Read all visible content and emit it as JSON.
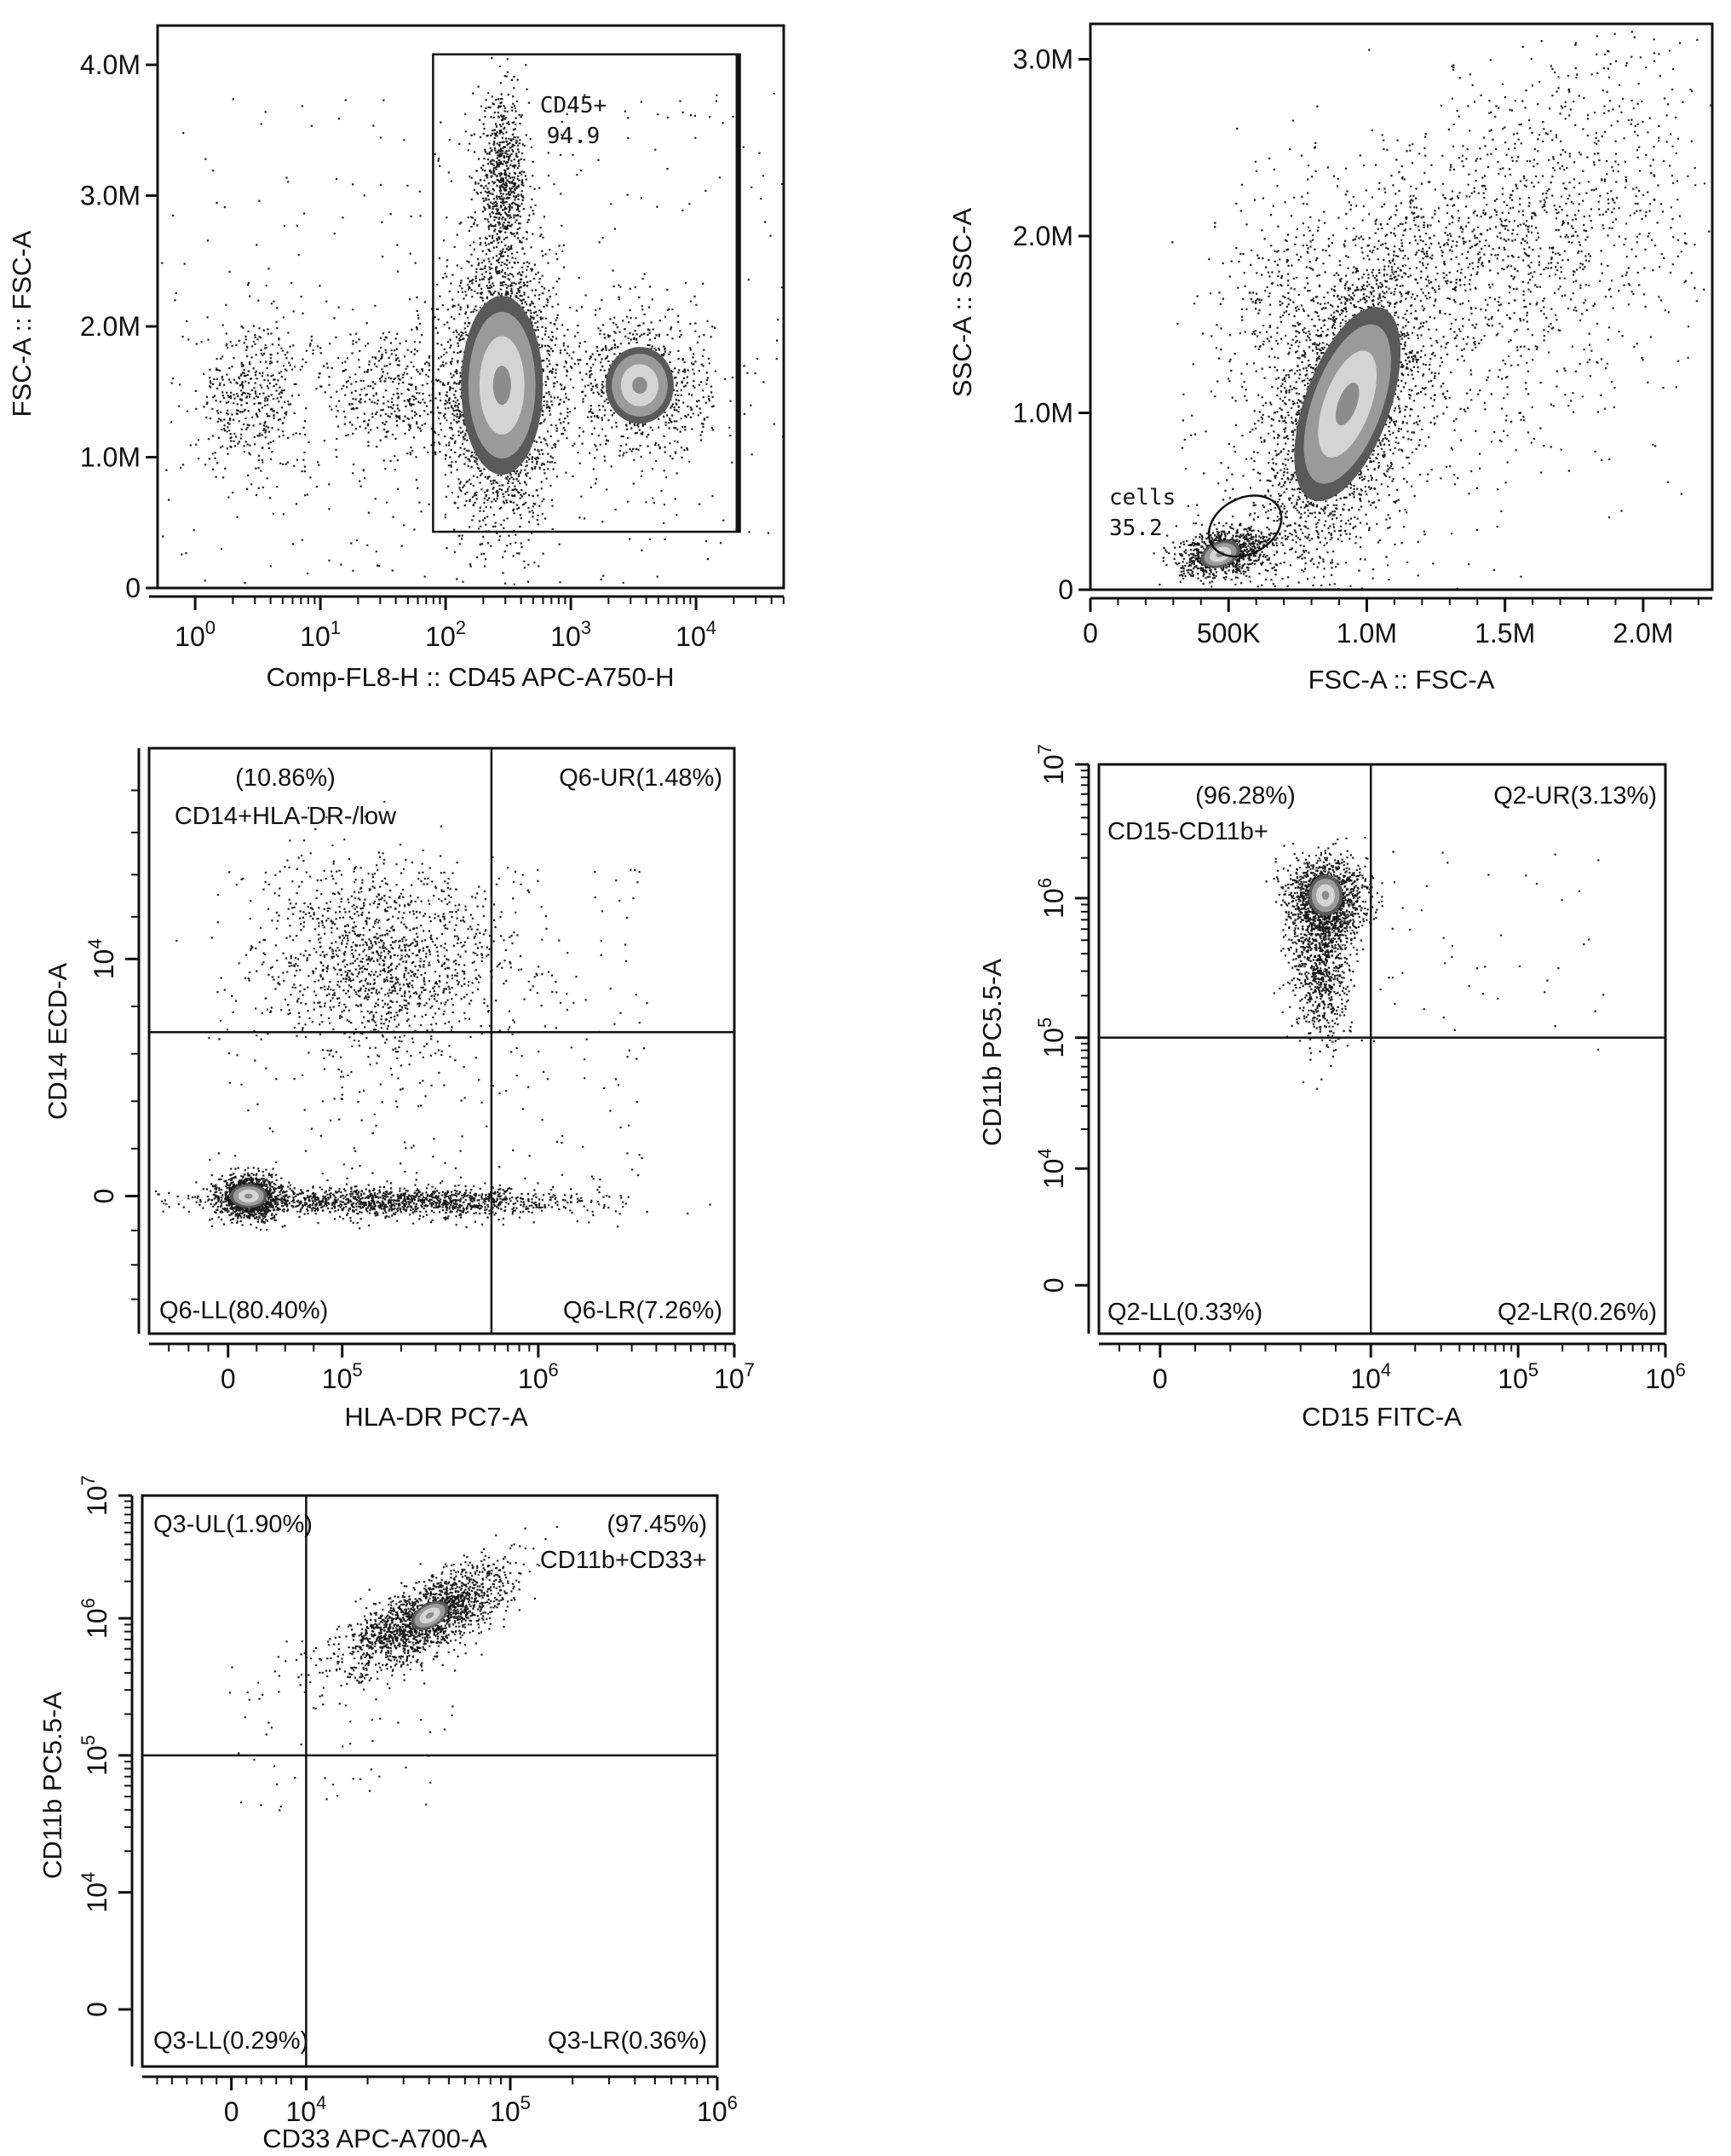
{
  "panels": [
    {
      "id": "p1",
      "type": "scatter",
      "xlabel": "Comp-FL8-H :: CD45 APC-A750-H",
      "ylabel": "FSC-A :: FSC-A",
      "xscale": "log",
      "xlim_log10": [
        -0.3,
        4.7
      ],
      "ylim": [
        0,
        4300000
      ],
      "xticks": [
        {
          "v": 0,
          "base": "10",
          "exp": "0"
        },
        {
          "v": 1,
          "base": "10",
          "exp": "1"
        },
        {
          "v": 2,
          "base": "10",
          "exp": "2"
        },
        {
          "v": 3,
          "base": "10",
          "exp": "3"
        },
        {
          "v": 4,
          "base": "10",
          "exp": "4"
        }
      ],
      "yticks": [
        {
          "v": 0,
          "label": "0"
        },
        {
          "v": 1000000,
          "label": "1.0M"
        },
        {
          "v": 2000000,
          "label": "2.0M"
        },
        {
          "v": 3000000,
          "label": "3.0M"
        },
        {
          "v": 4000000,
          "label": "4.0M"
        }
      ],
      "gate": {
        "type": "rectangle",
        "name": "CD45+",
        "value": "94.9",
        "x_log10": [
          1.9,
          4.35
        ],
        "y": [
          430000,
          4080000
        ]
      },
      "clusters": [
        {
          "cx": 2.45,
          "cy": 1550000,
          "sx": 0.22,
          "sy": 520000,
          "n": 2600
        },
        {
          "cx": 2.45,
          "cy": 3100000,
          "sx": 0.1,
          "sy": 320000,
          "n": 700
        },
        {
          "cx": 3.55,
          "cy": 1550000,
          "sx": 0.28,
          "sy": 280000,
          "n": 800
        },
        {
          "cx": 0.45,
          "cy": 1480000,
          "sx": 0.22,
          "sy": 280000,
          "n": 420
        },
        {
          "cx": 1.55,
          "cy": 1500000,
          "sx": 0.28,
          "sy": 300000,
          "n": 420
        }
      ],
      "background_points": 380
    },
    {
      "id": "p2",
      "type": "scatter",
      "xlabel": "FSC-A :: FSC-A",
      "ylabel": "SSC-A :: SSC-A",
      "xlim": [
        0,
        2250000
      ],
      "ylim": [
        0,
        3200000
      ],
      "xticks": [
        {
          "v": 0,
          "label": "0"
        },
        {
          "v": 500000,
          "label": "500K"
        },
        {
          "v": 1000000,
          "label": "1.0M"
        },
        {
          "v": 1500000,
          "label": "1.5M"
        },
        {
          "v": 2000000,
          "label": "2.0M"
        }
      ],
      "yticks": [
        {
          "v": 0,
          "label": "0"
        },
        {
          "v": 1000000,
          "label": "1.0M"
        },
        {
          "v": 2000000,
          "label": "2.0M"
        },
        {
          "v": 3000000,
          "label": "3.0M"
        }
      ],
      "gate": {
        "type": "ellipse",
        "name": "cells",
        "value": "35.2",
        "cx": 560000,
        "cy": 360000,
        "rx": 330000,
        "ry": 150000,
        "rotate_deg": -28
      },
      "clusters": [
        {
          "cx": 920000,
          "cy": 1050000,
          "sx": 150000,
          "sy": 460000,
          "n": 2600,
          "rho": 0.55
        },
        {
          "cx": 480000,
          "cy": 210000,
          "sx": 80000,
          "sy": 65000,
          "n": 900,
          "rho": 0.3
        },
        {
          "cx": 1500000,
          "cy": 2000000,
          "sx": 320000,
          "sy": 480000,
          "n": 1100,
          "rho": 0.35
        },
        {
          "cx": 700000,
          "cy": 1700000,
          "sx": 130000,
          "sy": 350000,
          "n": 300,
          "rho": 0.2
        }
      ],
      "background_points": 700
    },
    {
      "id": "p3",
      "type": "scatter",
      "xlabel": "HLA-DR PC7-A",
      "ylabel": "CD14 ECD-A",
      "xticks": [
        {
          "pos": 0.135,
          "base": "0",
          "exp": ""
        },
        {
          "pos": 0.33,
          "base": "10",
          "exp": "5"
        },
        {
          "pos": 0.665,
          "base": "10",
          "exp": "6"
        },
        {
          "pos": 1.0,
          "base": "10",
          "exp": "7"
        }
      ],
      "yticks": [
        {
          "pos": 0.235,
          "base": "0",
          "exp": ""
        },
        {
          "pos": 0.64,
          "base": "10",
          "exp": "4"
        }
      ],
      "divider": {
        "x": 0.585,
        "y": 0.515
      },
      "quadrants": {
        "UL_value": "(10.86%)",
        "UL_name": "CD14+HLA-DR-/low",
        "UR": "Q6-UR(1.48%)",
        "LL": "Q6-LL(80.40%)",
        "LR": "Q6-LR(7.26%)"
      },
      "clusters": [
        {
          "cx": 0.17,
          "cy": 0.235,
          "sx": 0.025,
          "sy": 0.018,
          "n": 1300
        },
        {
          "cx": 0.42,
          "cy": 0.226,
          "sx": 0.16,
          "sy": 0.013,
          "n": 1300
        },
        {
          "cx": 0.4,
          "cy": 0.64,
          "sx": 0.1,
          "sy": 0.08,
          "n": 1300
        }
      ],
      "background_points": 340
    },
    {
      "id": "p4",
      "type": "scatter",
      "xlabel": "CD15 FITC-A",
      "ylabel": "CD11b PC5.5-A",
      "xticks": [
        {
          "pos": 0.108,
          "base": "0",
          "exp": ""
        },
        {
          "pos": 0.48,
          "base": "10",
          "exp": "4"
        },
        {
          "pos": 0.74,
          "base": "10",
          "exp": "5"
        },
        {
          "pos": 1.0,
          "base": "10",
          "exp": "6"
        }
      ],
      "yticks": [
        {
          "pos": 0.085,
          "base": "0",
          "exp": ""
        },
        {
          "pos": 0.29,
          "base": "10",
          "exp": "4"
        },
        {
          "pos": 0.52,
          "base": "10",
          "exp": "5"
        },
        {
          "pos": 0.765,
          "base": "10",
          "exp": "6"
        },
        {
          "pos": 1.0,
          "base": "10",
          "exp": "7"
        }
      ],
      "divider": {
        "x": 0.48,
        "y": 0.52
      },
      "quadrants": {
        "UL_value": "(96.28%)",
        "UL_name": "CD15-CD11b+",
        "UR": "Q2-UR(3.13%)",
        "LL": "Q2-LL(0.33%)",
        "LR": "Q2-LR(0.26%)"
      },
      "clusters": [
        {
          "cx": 0.4,
          "cy": 0.765,
          "sx": 0.035,
          "sy": 0.035,
          "n": 1300
        },
        {
          "cx": 0.39,
          "cy": 0.65,
          "sx": 0.025,
          "sy": 0.07,
          "n": 800
        }
      ],
      "background_points": 60
    },
    {
      "id": "p5",
      "type": "scatter",
      "xlabel": "CD33 APC-A700-A",
      "ylabel": "CD11b PC5.5-A",
      "xticks": [
        {
          "pos": 0.155,
          "base": "0",
          "exp": ""
        },
        {
          "pos": 0.285,
          "base": "10",
          "exp": "4"
        },
        {
          "pos": 0.64,
          "base": "10",
          "exp": "5"
        },
        {
          "pos": 1.0,
          "base": "10",
          "exp": "6"
        }
      ],
      "yticks": [
        {
          "pos": 0.1,
          "base": "0",
          "exp": ""
        },
        {
          "pos": 0.305,
          "base": "10",
          "exp": "4"
        },
        {
          "pos": 0.545,
          "base": "10",
          "exp": "5"
        },
        {
          "pos": 0.785,
          "base": "10",
          "exp": "6"
        },
        {
          "pos": 1.0,
          "base": "10",
          "exp": "7"
        }
      ],
      "divider": {
        "x": 0.285,
        "y": 0.545
      },
      "quadrants": {
        "UL": "Q3-UL(1.90%)",
        "UR_value": "(97.45%)",
        "UR_name": "CD11b+CD33+",
        "LL": "Q3-LL(0.29%)",
        "LR": "Q3-LR(0.36%)"
      },
      "clusters": [
        {
          "cx": 0.49,
          "cy": 0.785,
          "sx": 0.07,
          "sy": 0.045,
          "n": 1800,
          "rho": 0.7
        }
      ],
      "background_points": 80
    }
  ]
}
